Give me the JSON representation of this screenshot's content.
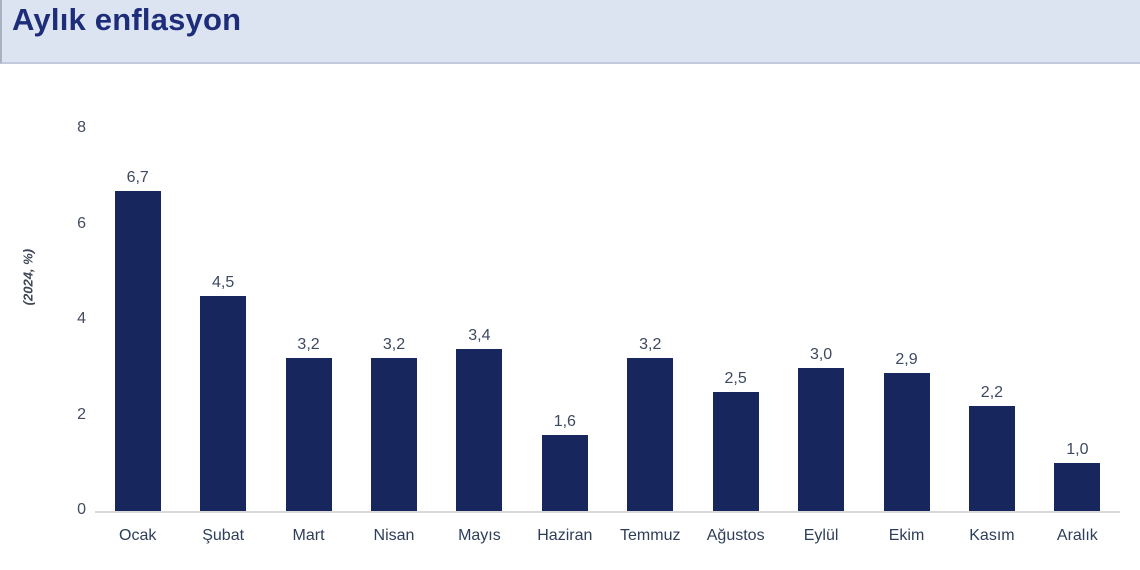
{
  "header": {
    "title": "Aylık enflasyon"
  },
  "chart_data": {
    "type": "bar",
    "title": "Aylık enflasyon",
    "categories": [
      "Ocak",
      "Şubat",
      "Mart",
      "Nisan",
      "Mayıs",
      "Haziran",
      "Temmuz",
      "Ağustos",
      "Eylül",
      "Ekim",
      "Kasım",
      "Aralık"
    ],
    "values": [
      6.7,
      4.5,
      3.2,
      3.2,
      3.4,
      1.6,
      3.2,
      2.5,
      3.0,
      2.9,
      2.2,
      1.0
    ],
    "value_labels": [
      "6,7",
      "4,5",
      "3,2",
      "3,2",
      "3,4",
      "1,6",
      "3,2",
      "2,5",
      "3,0",
      "2,9",
      "2,2",
      "1,0"
    ],
    "xlabel": "",
    "ylabel": "(2024, %)",
    "ylim": [
      0,
      8
    ],
    "yticks": [
      0,
      2,
      4,
      6,
      8
    ],
    "grid": false,
    "legend": false,
    "bar_color": "#17265c"
  },
  "colors": {
    "header_background": "#dde4f1",
    "title_text": "#1d2d7a",
    "bar": "#17265c",
    "axis_line": "#d9d9d9",
    "tick_text": "#424c60",
    "value_text": "#3d4960"
  }
}
